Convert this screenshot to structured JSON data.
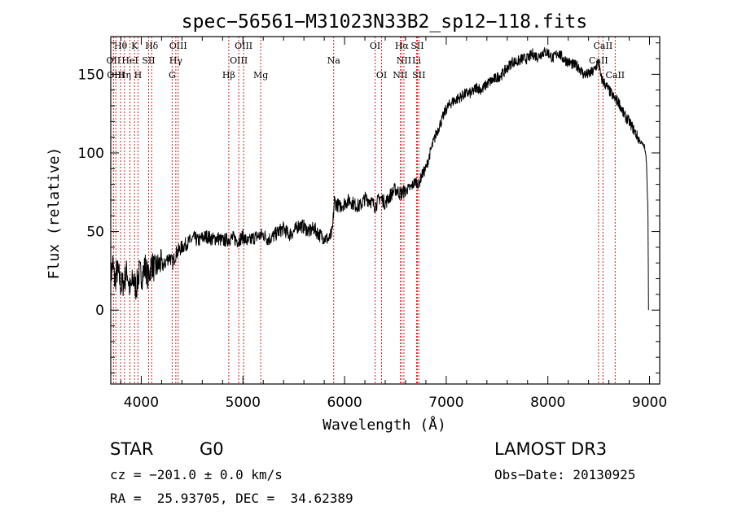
{
  "chart_data": {
    "type": "line",
    "title": "spec−56561−M31023N33B2_sp12−118.fits",
    "xlabel": "Wavelength (Å)",
    "ylabel": "Flux (relative)",
    "xlim": [
      3700,
      9100
    ],
    "ylim": [
      -47,
      174
    ],
    "x_ticks": [
      4000,
      5000,
      6000,
      7000,
      8000,
      9000
    ],
    "y_ticks": [
      0,
      50,
      100,
      150
    ],
    "line_color": "#cc2222",
    "series": [
      {
        "name": "spectrum",
        "x": [
          3700,
          3720,
          3740,
          3760,
          3780,
          3800,
          3830,
          3860,
          3890,
          3920,
          3950,
          3980,
          4010,
          4040,
          4070,
          4100,
          4130,
          4160,
          4190,
          4220,
          4250,
          4280,
          4310,
          4340,
          4370,
          4400,
          4440,
          4480,
          4520,
          4560,
          4600,
          4650,
          4700,
          4750,
          4800,
          4850,
          4900,
          4950,
          5000,
          5050,
          5100,
          5150,
          5200,
          5250,
          5300,
          5350,
          5400,
          5450,
          5500,
          5550,
          5600,
          5650,
          5700,
          5750,
          5800,
          5850,
          5880,
          5900,
          5910,
          5950,
          6000,
          6050,
          6100,
          6150,
          6200,
          6250,
          6300,
          6350,
          6400,
          6450,
          6500,
          6550,
          6600,
          6650,
          6700,
          6730,
          6760,
          6800,
          6850,
          6900,
          6950,
          7000,
          7050,
          7100,
          7150,
          7200,
          7250,
          7300,
          7350,
          7400,
          7450,
          7500,
          7550,
          7600,
          7650,
          7700,
          7750,
          7800,
          7850,
          7900,
          7950,
          8000,
          8050,
          8100,
          8150,
          8200,
          8250,
          8300,
          8350,
          8400,
          8450,
          8500,
          8520,
          8550,
          8600,
          8650,
          8700,
          8750,
          8800,
          8850,
          8900,
          8950,
          8970,
          8985,
          8990
        ],
        "y": [
          20,
          30,
          18,
          25,
          22,
          15,
          18,
          25,
          12,
          20,
          14,
          24,
          22,
          28,
          20,
          30,
          26,
          28,
          30,
          28,
          32,
          34,
          30,
          36,
          38,
          40,
          42,
          44,
          46,
          44,
          46,
          47,
          45,
          46,
          44,
          45,
          46,
          44,
          47,
          43,
          46,
          47,
          48,
          45,
          47,
          50,
          52,
          48,
          50,
          54,
          53,
          50,
          52,
          48,
          46,
          45,
          50,
          70,
          68,
          66,
          68,
          70,
          67,
          66,
          71,
          70,
          66,
          72,
          68,
          73,
          77,
          74,
          76,
          78,
          82,
          80,
          86,
          90,
          102,
          112,
          120,
          128,
          132,
          134,
          136,
          138,
          138,
          142,
          140,
          144,
          146,
          148,
          150,
          154,
          158,
          158,
          160,
          160,
          163,
          161,
          164,
          164,
          160,
          164,
          160,
          158,
          156,
          155,
          150,
          150,
          152,
          158,
          148,
          145,
          140,
          135,
          132,
          124,
          120,
          114,
          108,
          104,
          95,
          60,
          0
        ]
      }
    ],
    "line_markers": [
      {
        "label": "Hθ",
        "x": 3797,
        "row": 0
      },
      {
        "label": "K",
        "x": 3934,
        "row": 0
      },
      {
        "label": "Hδ",
        "x": 4102,
        "row": 0
      },
      {
        "label": "OIII",
        "x": 4363,
        "row": 0
      },
      {
        "label": "OIII",
        "x": 5007,
        "row": 0
      },
      {
        "label": "OI",
        "x": 6300,
        "row": 0
      },
      {
        "label": "Hα",
        "x": 6563,
        "row": 0
      },
      {
        "label": "SII",
        "x": 6716,
        "row": 0
      },
      {
        "label": "CaII",
        "x": 8542,
        "row": 0
      },
      {
        "label": "OII",
        "x": 3727,
        "row": 1
      },
      {
        "label": "HeI",
        "x": 3889,
        "row": 1
      },
      {
        "label": "SII",
        "x": 4072,
        "row": 1
      },
      {
        "label": "Hγ",
        "x": 4340,
        "row": 1
      },
      {
        "label": "OIII",
        "x": 4959,
        "row": 1
      },
      {
        "label": "Na",
        "x": 5893,
        "row": 1
      },
      {
        "label": "NII",
        "x": 6584,
        "row": 1
      },
      {
        "label": "Li",
        "x": 6708,
        "row": 1
      },
      {
        "label": "CaII",
        "x": 8498,
        "row": 1
      },
      {
        "label": "OIII",
        "x": 3750,
        "row": 2
      },
      {
        "label": "Hη",
        "x": 3835,
        "row": 2
      },
      {
        "label": "H",
        "x": 3968,
        "row": 2
      },
      {
        "label": "G",
        "x": 4304,
        "row": 2
      },
      {
        "label": "Hβ",
        "x": 4861,
        "row": 2
      },
      {
        "label": "Mg",
        "x": 5175,
        "row": 2
      },
      {
        "label": "OI",
        "x": 6364,
        "row": 2
      },
      {
        "label": "NII",
        "x": 6548,
        "row": 2
      },
      {
        "label": "SII",
        "x": 6731,
        "row": 2
      },
      {
        "label": "CaII",
        "x": 8662,
        "row": 2
      }
    ]
  },
  "footer": {
    "object_class": "STAR",
    "subclass": "G0",
    "survey": "LAMOST DR3",
    "cz": "cz = −201.0 ± 0.0 km/s",
    "obs_date": "Obs−Date: 20130925",
    "coords": "RA =  25.93705, DEC =  34.62389"
  }
}
